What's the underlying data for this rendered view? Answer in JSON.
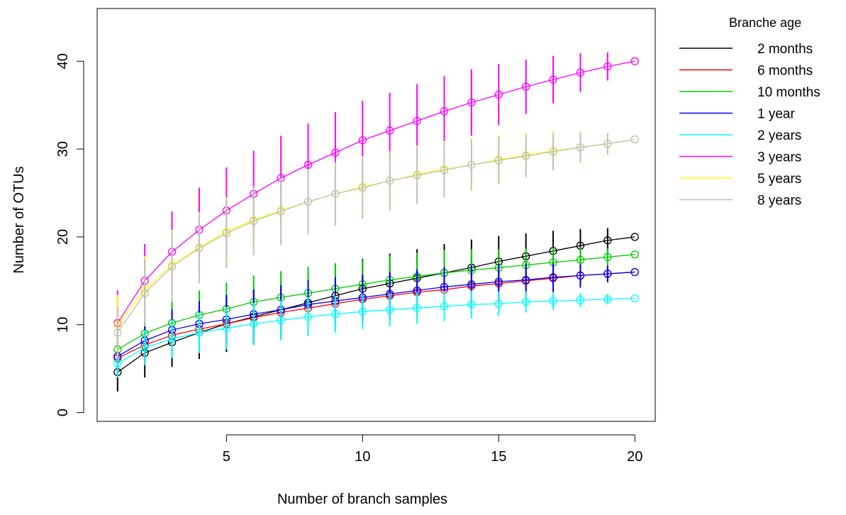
{
  "chart_data": {
    "type": "line",
    "title": "",
    "xlabel": "Number of branch samples",
    "ylabel": "Number of OTUs",
    "xlim": [
      0.25,
      20.75
    ],
    "ylim": [
      -1,
      46
    ],
    "x_ticks": [
      5,
      10,
      15,
      20
    ],
    "y_ticks": [
      0,
      10,
      20,
      30,
      40
    ],
    "x": [
      1,
      2,
      3,
      4,
      5,
      6,
      7,
      8,
      9,
      10,
      11,
      12,
      13,
      14,
      15,
      16,
      17,
      18,
      19,
      20
    ],
    "grid": false,
    "legend": {
      "title": "Branche age",
      "position": "right-outside"
    },
    "series": [
      {
        "name": "2 months",
        "color": "#000000",
        "values": [
          4.6,
          6.8,
          8.0,
          9.1,
          10.1,
          10.9,
          11.7,
          12.5,
          13.3,
          14.1,
          14.7,
          15.3,
          15.9,
          16.5,
          17.2,
          17.8,
          18.4,
          19.0,
          19.6,
          20.0
        ],
        "err": [
          2.2,
          2.8,
          2.8,
          3.0,
          3.2,
          3.2,
          3.2,
          3.3,
          3.3,
          3.4,
          3.4,
          3.3,
          3.3,
          3.2,
          2.9,
          2.6,
          2.3,
          1.9,
          1.4,
          0
        ]
      },
      {
        "name": "6 months",
        "color": "#ff0000",
        "values": [
          6.2,
          7.7,
          8.8,
          9.5,
          10.1,
          10.8,
          11.4,
          11.9,
          12.4,
          12.9,
          13.3,
          13.7,
          14.0,
          14.4,
          14.7,
          15.0,
          15.3,
          15.6,
          15.8,
          16.0
        ],
        "err": [
          1.8,
          2.2,
          2.6,
          2.8,
          2.9,
          3.0,
          3.0,
          3.0,
          3.0,
          2.9,
          2.8,
          2.7,
          2.6,
          2.5,
          2.3,
          2.0,
          1.7,
          1.4,
          1.0,
          0
        ]
      },
      {
        "name": "10 months",
        "color": "#00cc00",
        "values": [
          7.2,
          9.0,
          10.2,
          11.1,
          11.8,
          12.6,
          13.1,
          13.6,
          14.1,
          14.6,
          15.1,
          15.5,
          15.9,
          16.2,
          16.5,
          16.8,
          17.1,
          17.4,
          17.7,
          18.0
        ],
        "err": [
          1.8,
          2.2,
          2.6,
          2.8,
          3.0,
          3.0,
          3.0,
          3.0,
          2.9,
          2.8,
          2.8,
          2.7,
          2.6,
          2.4,
          2.1,
          1.9,
          1.7,
          1.4,
          1.0,
          0
        ]
      },
      {
        "name": "1 year",
        "color": "#0000ff",
        "values": [
          6.4,
          8.2,
          9.4,
          10.1,
          10.6,
          11.2,
          11.7,
          12.3,
          12.7,
          13.1,
          13.5,
          13.9,
          14.3,
          14.6,
          14.9,
          15.1,
          15.4,
          15.6,
          15.8,
          16.0
        ],
        "err": [
          1.6,
          2.0,
          2.4,
          2.6,
          2.8,
          2.8,
          2.8,
          2.8,
          2.7,
          2.6,
          2.5,
          2.4,
          2.3,
          2.2,
          2.0,
          1.8,
          1.6,
          1.3,
          0.9,
          0
        ]
      },
      {
        "name": "2 years",
        "color": "#00ffff",
        "values": [
          5.6,
          7.4,
          8.4,
          9.1,
          9.6,
          10.1,
          10.5,
          10.9,
          11.2,
          11.5,
          11.7,
          11.9,
          12.1,
          12.3,
          12.4,
          12.6,
          12.7,
          12.8,
          12.9,
          13.0
        ],
        "err": [
          1.6,
          2.0,
          2.2,
          2.3,
          2.4,
          2.4,
          2.3,
          2.2,
          2.1,
          2.0,
          1.9,
          1.8,
          1.7,
          1.6,
          1.4,
          1.2,
          1.0,
          0.8,
          0.6,
          0
        ]
      },
      {
        "name": "3 years",
        "color": "#ff00ff",
        "values": [
          10.2,
          15.0,
          18.3,
          20.8,
          23.0,
          24.9,
          26.7,
          28.2,
          29.6,
          31.0,
          32.1,
          33.2,
          34.3,
          35.3,
          36.2,
          37.1,
          37.9,
          38.7,
          39.4,
          40.0
        ],
        "err": [
          3.7,
          4.2,
          4.6,
          4.8,
          4.9,
          4.9,
          4.8,
          4.7,
          4.6,
          4.5,
          4.3,
          4.2,
          4.0,
          3.8,
          3.5,
          3.1,
          2.7,
          2.2,
          1.6,
          0
        ]
      },
      {
        "name": "5 years",
        "color": "#ffff00",
        "values": [
          10.0,
          14.0,
          16.8,
          18.8,
          20.6,
          21.9,
          23.0,
          24.0,
          24.9,
          25.7,
          26.4,
          27.1,
          27.7,
          28.2,
          28.8,
          29.3,
          29.8,
          30.2,
          30.6,
          31.1
        ],
        "err": [
          3.4,
          3.8,
          4.0,
          4.0,
          3.9,
          3.8,
          3.7,
          3.6,
          3.6,
          3.5,
          3.4,
          3.3,
          3.2,
          3.0,
          2.8,
          2.5,
          2.2,
          1.8,
          1.3,
          0
        ]
      },
      {
        "name": "8 years",
        "color": "#c0c0c0",
        "values": [
          9.1,
          13.6,
          16.6,
          18.7,
          20.4,
          21.8,
          22.9,
          24.0,
          24.9,
          25.6,
          26.4,
          27.0,
          27.6,
          28.2,
          28.7,
          29.2,
          29.7,
          30.2,
          30.6,
          31.1
        ],
        "err": [
          2.9,
          3.8,
          4.0,
          4.0,
          4.0,
          3.9,
          3.8,
          3.7,
          3.6,
          3.5,
          3.4,
          3.3,
          3.1,
          2.9,
          2.7,
          2.4,
          2.1,
          1.7,
          1.2,
          0
        ]
      }
    ]
  }
}
